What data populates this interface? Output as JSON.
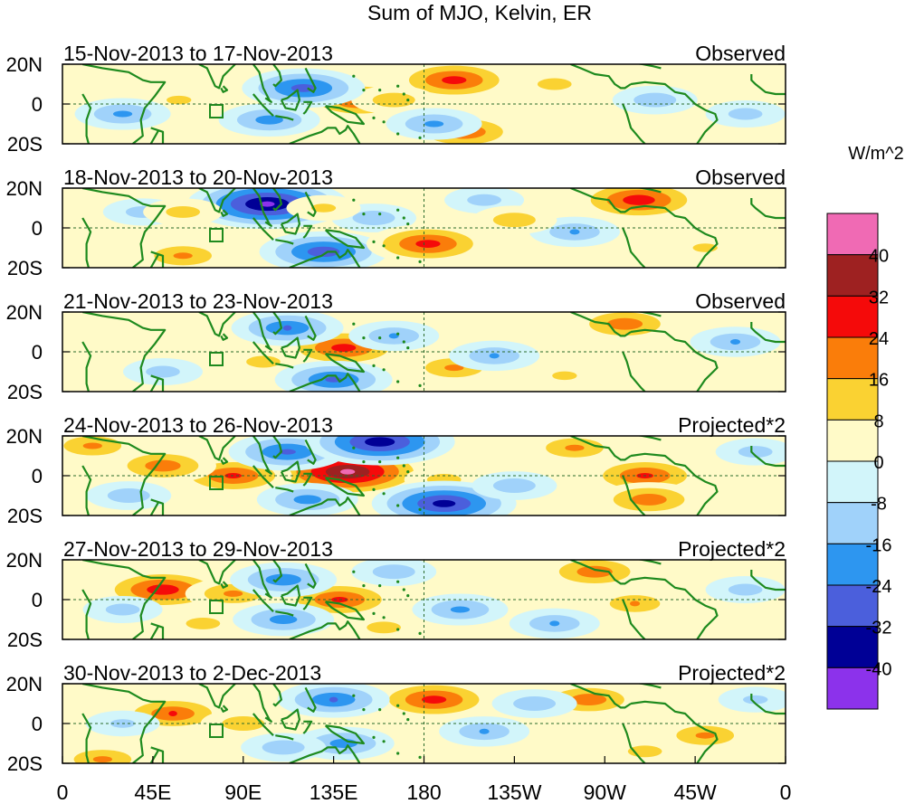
{
  "chart_data": {
    "type": "heatmap",
    "title": "Sum of MJO, Kelvin, ER",
    "units_label": "W/m^2",
    "colorbar": {
      "levels": [
        40,
        32,
        24,
        16,
        8,
        0,
        -8,
        -16,
        -24,
        -32,
        -40
      ],
      "colors": [
        "#f06ab4",
        "#9e2121",
        "#f50a0a",
        "#fa7d0a",
        "#fad232",
        "#fffac8",
        "#d2f5fa",
        "#a0d2fa",
        "#2d96f0",
        "#4b5fdc",
        "#000096",
        "#8c32eb"
      ]
    },
    "x_ticks": [
      "0",
      "45E",
      "90E",
      "135E",
      "180",
      "135W",
      "90W",
      "45W",
      "0"
    ],
    "y_ticks": [
      "20N",
      "0",
      "20S"
    ],
    "panels": [
      {
        "label": "15-Nov-2013 to 17-Nov-2013",
        "tag": "Observed"
      },
      {
        "label": "18-Nov-2013 to 20-Nov-2013",
        "tag": "Observed"
      },
      {
        "label": "21-Nov-2013 to 23-Nov-2013",
        "tag": "Observed"
      },
      {
        "label": "24-Nov-2013 to 26-Nov-2013",
        "tag": "Projected*2"
      },
      {
        "label": "27-Nov-2013 to 29-Nov-2013",
        "tag": "Projected*2"
      },
      {
        "label": "30-Nov-2013 to 2-Dec-2013",
        "tag": "Projected*2"
      }
    ],
    "anomalies": [
      [
        {
          "lon": 195,
          "lat": 12,
          "v": 28
        },
        {
          "lon": 148,
          "lat": 2,
          "v": 26
        },
        {
          "lon": 200,
          "lat": -14,
          "v": 24
        },
        {
          "lon": 165,
          "lat": 2,
          "v": 14
        },
        {
          "lon": 245,
          "lat": 10,
          "v": 12
        },
        {
          "lon": 58,
          "lat": 2,
          "v": 10
        },
        {
          "lon": 120,
          "lat": 8,
          "v": -28
        },
        {
          "lon": 103,
          "lat": -8,
          "v": -20
        },
        {
          "lon": 30,
          "lat": -5,
          "v": -18
        },
        {
          "lon": 185,
          "lat": -10,
          "v": -18
        },
        {
          "lon": 295,
          "lat": 2,
          "v": -14
        },
        {
          "lon": 340,
          "lat": -5,
          "v": -12
        }
      ],
      [
        {
          "lon": 102,
          "lat": 12,
          "v": -42
        },
        {
          "lon": 130,
          "lat": -12,
          "v": -30
        },
        {
          "lon": 155,
          "lat": 5,
          "v": -14
        },
        {
          "lon": 40,
          "lat": 8,
          "v": -12
        },
        {
          "lon": 210,
          "lat": 14,
          "v": -12
        },
        {
          "lon": 255,
          "lat": -2,
          "v": -16
        },
        {
          "lon": 182,
          "lat": -8,
          "v": 28
        },
        {
          "lon": 287,
          "lat": 14,
          "v": 30
        },
        {
          "lon": 60,
          "lat": -14,
          "v": 18
        },
        {
          "lon": 60,
          "lat": 8,
          "v": 12
        },
        {
          "lon": 130,
          "lat": 10,
          "v": 10
        },
        {
          "lon": 225,
          "lat": 4,
          "v": 14
        },
        {
          "lon": 320,
          "lat": -10,
          "v": 10
        }
      ],
      [
        {
          "lon": 140,
          "lat": 2,
          "v": 28
        },
        {
          "lon": 280,
          "lat": 14,
          "v": 22
        },
        {
          "lon": 100,
          "lat": -5,
          "v": 12
        },
        {
          "lon": 195,
          "lat": -8,
          "v": 18
        },
        {
          "lon": 112,
          "lat": 12,
          "v": -24
        },
        {
          "lon": 135,
          "lat": -14,
          "v": -26
        },
        {
          "lon": 165,
          "lat": 8,
          "v": -16
        },
        {
          "lon": 215,
          "lat": -2,
          "v": -16
        },
        {
          "lon": 50,
          "lat": -10,
          "v": -12
        },
        {
          "lon": 335,
          "lat": 5,
          "v": -16
        },
        {
          "lon": 250,
          "lat": -12,
          "v": 10
        }
      ],
      [
        {
          "lon": 142,
          "lat": 2,
          "v": 42
        },
        {
          "lon": 85,
          "lat": 0,
          "v": 26
        },
        {
          "lon": 50,
          "lat": 5,
          "v": 22
        },
        {
          "lon": 15,
          "lat": 15,
          "v": 18
        },
        {
          "lon": 290,
          "lat": 0,
          "v": 26
        },
        {
          "lon": 255,
          "lat": 14,
          "v": 18
        },
        {
          "lon": 292,
          "lat": -12,
          "v": 22
        },
        {
          "lon": 190,
          "lat": -2,
          "v": 12
        },
        {
          "lon": 112,
          "lat": 12,
          "v": -26
        },
        {
          "lon": 122,
          "lat": -12,
          "v": -20
        },
        {
          "lon": 158,
          "lat": 17,
          "v": -38
        },
        {
          "lon": 190,
          "lat": -14,
          "v": -36
        },
        {
          "lon": 225,
          "lat": -5,
          "v": -14
        },
        {
          "lon": 33,
          "lat": -10,
          "v": -14
        },
        {
          "lon": 345,
          "lat": 12,
          "v": -12
        }
      ],
      [
        {
          "lon": 50,
          "lat": 5,
          "v": 30
        },
        {
          "lon": 85,
          "lat": 3,
          "v": 18
        },
        {
          "lon": 138,
          "lat": 0,
          "v": 26
        },
        {
          "lon": 265,
          "lat": 14,
          "v": 22
        },
        {
          "lon": 285,
          "lat": -2,
          "v": 16
        },
        {
          "lon": 70,
          "lat": -12,
          "v": 12
        },
        {
          "lon": 160,
          "lat": -14,
          "v": 12
        },
        {
          "lon": 110,
          "lat": 10,
          "v": -22
        },
        {
          "lon": 110,
          "lat": -10,
          "v": -20
        },
        {
          "lon": 198,
          "lat": -5,
          "v": -18
        },
        {
          "lon": 245,
          "lat": -12,
          "v": -16
        },
        {
          "lon": 165,
          "lat": 14,
          "v": -14
        },
        {
          "lon": 340,
          "lat": 5,
          "v": -12
        },
        {
          "lon": 30,
          "lat": -5,
          "v": -12
        }
      ],
      [
        {
          "lon": 55,
          "lat": 5,
          "v": 24
        },
        {
          "lon": 90,
          "lat": 0,
          "v": 14
        },
        {
          "lon": 185,
          "lat": 12,
          "v": 28
        },
        {
          "lon": 262,
          "lat": 12,
          "v": 22
        },
        {
          "lon": 320,
          "lat": -6,
          "v": 18
        },
        {
          "lon": 20,
          "lat": -18,
          "v": 18
        },
        {
          "lon": 290,
          "lat": -14,
          "v": 12
        },
        {
          "lon": 135,
          "lat": 12,
          "v": -24
        },
        {
          "lon": 140,
          "lat": -10,
          "v": -20
        },
        {
          "lon": 210,
          "lat": -4,
          "v": -16
        },
        {
          "lon": 235,
          "lat": 10,
          "v": -14
        },
        {
          "lon": 110,
          "lat": -12,
          "v": -14
        },
        {
          "lon": 30,
          "lat": 0,
          "v": -10
        },
        {
          "lon": 345,
          "lat": 12,
          "v": -10
        }
      ]
    ]
  }
}
